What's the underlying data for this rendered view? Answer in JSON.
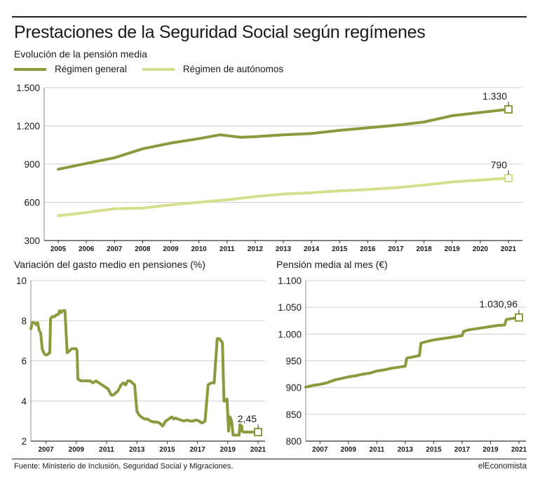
{
  "title": "Prestaciones de la Seguridad Social según regímenes",
  "source": "Fuente: Ministerio de Inclusión, Seguridad Social y Migraciones.",
  "brand": "elEconomista",
  "colors": {
    "general": "#8a9a3c",
    "autonomos": "#d6df8e",
    "grid": "#cfcfcf",
    "text": "#1a1a1a"
  },
  "chart_data": [
    {
      "type": "line",
      "title": "Evolución de la pensión media",
      "ylim": [
        300,
        1500
      ],
      "yticks": [
        "1.500",
        "1.200",
        "900",
        "600",
        "300"
      ],
      "ytick_values": [
        1500,
        1200,
        900,
        600,
        300
      ],
      "xticks": [
        "2005",
        "2006",
        "2007",
        "2008",
        "2009",
        "2010",
        "2011",
        "2012",
        "2013",
        "2014",
        "2015",
        "2016",
        "2017",
        "2018",
        "2019",
        "2020",
        "2021"
      ],
      "xlim": [
        2005,
        2021
      ],
      "series": [
        {
          "name": "Régimen general",
          "color_key": "general",
          "end_label": "1.330",
          "x": [
            2005,
            2006,
            2007,
            2008,
            2009,
            2010,
            2010.75,
            2011.5,
            2012,
            2013,
            2014,
            2015,
            2016,
            2017,
            2018,
            2019,
            2020,
            2021
          ],
          "y": [
            860,
            905,
            950,
            1020,
            1065,
            1100,
            1130,
            1110,
            1115,
            1130,
            1140,
            1165,
            1185,
            1205,
            1230,
            1280,
            1305,
            1330
          ]
        },
        {
          "name": "Régimen de autónomos",
          "color_key": "autonomos",
          "end_label": "790",
          "x": [
            2005,
            2006,
            2007,
            2008,
            2009,
            2010,
            2011,
            2012,
            2013,
            2014,
            2015,
            2016,
            2017,
            2018,
            2019,
            2020,
            2021
          ],
          "y": [
            495,
            520,
            550,
            555,
            580,
            600,
            620,
            645,
            665,
            675,
            690,
            700,
            715,
            735,
            760,
            775,
            790
          ]
        }
      ]
    },
    {
      "type": "line",
      "title": "Variación del gasto medio en pensiones (%)",
      "ylim": [
        2,
        10
      ],
      "yticks": [
        "10",
        "8",
        "6",
        "4",
        "2"
      ],
      "ytick_values": [
        10,
        8,
        6,
        4,
        2
      ],
      "xticks": [
        "2007",
        "2009",
        "2011",
        "2013",
        "2015",
        "2017",
        "2019",
        "2021"
      ],
      "xlim": [
        2006,
        2021
      ],
      "end_label": "2,45",
      "series": [
        {
          "name": "",
          "color_key": "general",
          "x": [
            2006.0,
            2006.1,
            2006.25,
            2006.35,
            2006.45,
            2006.55,
            2006.65,
            2006.75,
            2006.85,
            2006.95,
            2007.1,
            2007.2,
            2007.25,
            2007.3,
            2007.4,
            2007.55,
            2007.7,
            2007.8,
            2007.85,
            2007.9,
            2008.0,
            2008.1,
            2008.25,
            2008.4,
            2008.55,
            2008.7,
            2008.85,
            2009.0,
            2009.05,
            2009.1,
            2009.3,
            2009.5,
            2009.7,
            2009.9,
            2010.1,
            2010.3,
            2010.5,
            2010.7,
            2010.9,
            2011.1,
            2011.3,
            2011.45,
            2011.6,
            2011.75,
            2011.95,
            2012.1,
            2012.25,
            2012.4,
            2012.55,
            2012.7,
            2012.85,
            2013.0,
            2013.15,
            2013.3,
            2013.5,
            2013.7,
            2013.9,
            2014.1,
            2014.3,
            2014.5,
            2014.7,
            2014.9,
            2015.1,
            2015.3,
            2015.45,
            2015.55,
            2015.7,
            2015.9,
            2016.1,
            2016.3,
            2016.5,
            2016.7,
            2016.9,
            2017.1,
            2017.3,
            2017.5,
            2017.7,
            2017.9,
            2018.1,
            2018.3,
            2018.45,
            2018.55,
            2018.65,
            2018.75,
            2018.85,
            2018.95,
            2019.05,
            2019.15,
            2019.25,
            2019.35,
            2019.45,
            2019.55,
            2019.65,
            2019.75,
            2019.85,
            2019.95,
            2020.05,
            2020.15,
            2020.25,
            2020.35,
            2020.45,
            2020.55,
            2020.65,
            2020.7,
            2020.75,
            2020.8,
            2020.9,
            2021.0
          ],
          "y": [
            7.6,
            7.9,
            7.9,
            7.8,
            7.9,
            7.5,
            7.4,
            6.6,
            6.4,
            6.3,
            6.3,
            6.4,
            6.4,
            8.1,
            8.2,
            8.2,
            8.3,
            8.3,
            8.4,
            8.5,
            8.4,
            8.5,
            8.5,
            6.4,
            6.5,
            6.6,
            6.6,
            6.6,
            6.5,
            5.1,
            5.0,
            5.0,
            5.0,
            5.0,
            4.9,
            5.0,
            4.9,
            4.8,
            4.7,
            4.6,
            4.3,
            4.3,
            4.4,
            4.5,
            4.8,
            4.9,
            4.8,
            5.0,
            5.0,
            4.9,
            4.8,
            3.5,
            3.3,
            3.2,
            3.1,
            3.1,
            3.0,
            2.95,
            2.95,
            2.9,
            2.75,
            3.0,
            3.1,
            3.2,
            3.1,
            3.15,
            3.1,
            3.05,
            3.0,
            3.05,
            3.0,
            3.0,
            3.05,
            3.0,
            2.9,
            3.0,
            4.8,
            4.9,
            4.9,
            7.1,
            7.1,
            7.0,
            6.9,
            4.0,
            4.0,
            4.1,
            2.5,
            3.2,
            3.0,
            2.3,
            2.3,
            2.3,
            2.3,
            2.3,
            3.2,
            2.5,
            2.45,
            2.45,
            2.45,
            2.45,
            2.45,
            2.45,
            2.45,
            2.45,
            2.45,
            2.45,
            2.45,
            2.45
          ]
        }
      ]
    },
    {
      "type": "line",
      "title": "Pensión media al mes (€)",
      "ylim": [
        800,
        1100
      ],
      "yticks": [
        "1.100",
        "1.050",
        "1.000",
        "950",
        "900",
        "850",
        "800"
      ],
      "ytick_values": [
        1100,
        1050,
        1000,
        950,
        900,
        850,
        800
      ],
      "xticks": [
        "2007",
        "2009",
        "2011",
        "2013",
        "2015",
        "2017",
        "2019",
        "2021"
      ],
      "xlim": [
        2006,
        2021
      ],
      "end_label": "1.030,96",
      "series": [
        {
          "name": "",
          "color_key": "general",
          "x": [
            2006.0,
            2006.5,
            2007.0,
            2007.5,
            2008.0,
            2008.5,
            2009.0,
            2009.5,
            2010.0,
            2010.5,
            2011.0,
            2011.5,
            2012.0,
            2012.5,
            2013.0,
            2013.1,
            2013.5,
            2014.0,
            2014.1,
            2014.5,
            2015.0,
            2015.5,
            2016.0,
            2016.5,
            2017.0,
            2017.1,
            2017.5,
            2018.0,
            2018.5,
            2019.0,
            2019.5,
            2020.0,
            2020.1,
            2020.5,
            2021.0
          ],
          "y": [
            901,
            904,
            906,
            909,
            914,
            917,
            920,
            922,
            925,
            927,
            931,
            933,
            936,
            938,
            940,
            955,
            957,
            960,
            983,
            986,
            989,
            991,
            993,
            995,
            997,
            1005,
            1008,
            1010,
            1012,
            1014,
            1016,
            1017,
            1027,
            1029,
            1030.96
          ]
        }
      ]
    }
  ]
}
